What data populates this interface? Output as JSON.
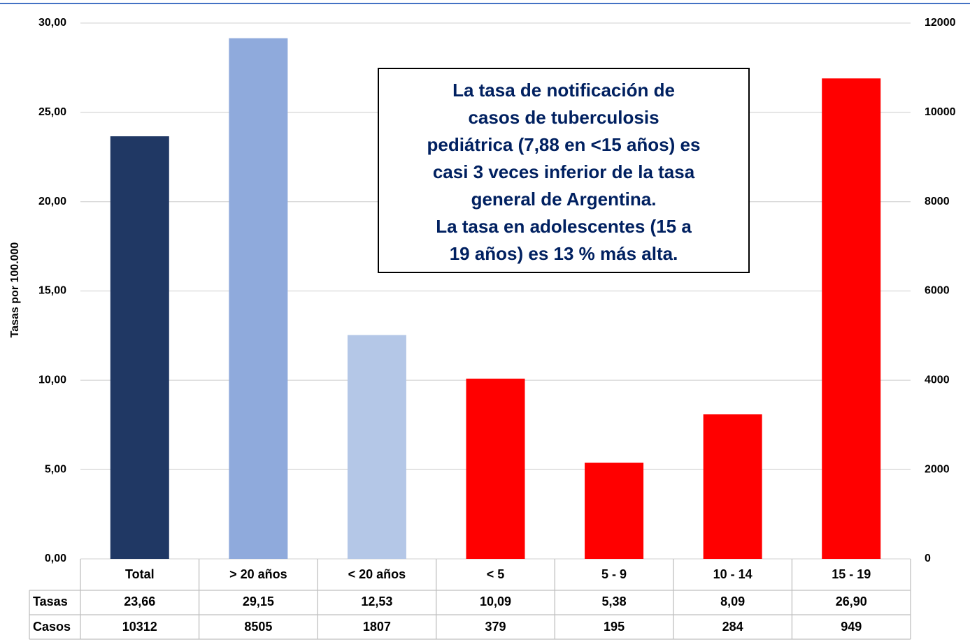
{
  "chart_data": {
    "type": "bar",
    "y_label": "Tasas por 100.000",
    "annotation": [
      "La tasa de  notificación de",
      "casos de tuberculosis",
      "pediátrica (7,88 en <15 años) es",
      "casi 3 veces inferior de la tasa",
      "general de Argentina.",
      "La tasa en adolescentes (15 a",
      "19 años) es 13 % más alta."
    ],
    "categories": [
      "Total",
      "> 20 años",
      "< 20 años",
      "< 5",
      "5 - 9",
      "10 - 14",
      "15 - 19"
    ],
    "series": [
      {
        "name": "Tasas",
        "colors": [
          "#203864",
          "#8faadc",
          "#b4c7e7",
          "#ff0000",
          "#ff0000",
          "#ff0000",
          "#ff0000"
        ],
        "values": [
          23.66,
          29.15,
          12.53,
          10.09,
          5.38,
          8.09,
          26.9
        ],
        "value_labels": [
          "23,66",
          "29,15",
          "12,53",
          "10,09",
          "5,38",
          "8,09",
          "26,90"
        ]
      },
      {
        "name": "Casos",
        "axis": "y2",
        "values": [
          10312,
          8505,
          1807,
          379,
          195,
          284,
          949
        ]
      }
    ],
    "ylim": [
      0,
      30
    ],
    "yticks": [
      {
        "value": 0,
        "label": "0,00"
      },
      {
        "value": 5,
        "label": "5,00"
      },
      {
        "value": 10,
        "label": "10,00"
      },
      {
        "value": 15,
        "label": "15,00"
      },
      {
        "value": 20,
        "label": "20,00"
      },
      {
        "value": 25,
        "label": "25,00"
      },
      {
        "value": 30,
        "label": "30,00"
      }
    ],
    "y2lim": [
      0,
      12000
    ],
    "y2ticks": [
      0,
      2000,
      4000,
      6000,
      8000,
      10000,
      12000
    ],
    "grid": true
  }
}
